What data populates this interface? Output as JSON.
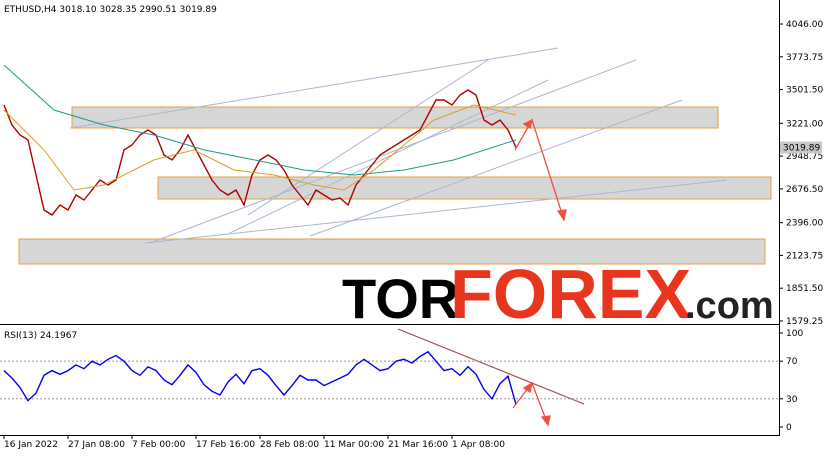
{
  "chart_data": [
    {
      "type": "line",
      "title": "ETHUSD,H4  3018.10 3028.35 2990.51 3019.89",
      "xlim": [
        -4,
        774
      ],
      "ylim": [
        1554,
        4229
      ],
      "yticks": [
        {
          "value": 4046,
          "label": "4046.00"
        },
        {
          "value": 3773.75,
          "label": "3773.75"
        },
        {
          "value": 3501.5,
          "label": "3501.50"
        },
        {
          "value": 3221,
          "label": "3221.00"
        },
        {
          "value": 2948.75,
          "label": "2948.75"
        },
        {
          "value": 2676.5,
          "label": "2676.50"
        },
        {
          "value": 2396,
          "label": "2396.00"
        },
        {
          "value": 2123.75,
          "label": "2123.75"
        },
        {
          "value": 1851.5,
          "label": "1851.50"
        },
        {
          "value": 1579.25,
          "label": "1579.25"
        }
      ],
      "last_price": {
        "value": 3019.89,
        "label": "3019.89"
      },
      "series": [
        {
          "color": "#b00000",
          "x": [
            0,
            8,
            16,
            24,
            32,
            40,
            48,
            56,
            64,
            72,
            80,
            88,
            96,
            104,
            112,
            120,
            128,
            136,
            144,
            152,
            160,
            168,
            176,
            184,
            192,
            200,
            208,
            216,
            224,
            232,
            240,
            248,
            256,
            264,
            272,
            280,
            288,
            296,
            304,
            312,
            320,
            328,
            336,
            344,
            352,
            360,
            368,
            376,
            384,
            392,
            400,
            408,
            416,
            424,
            432,
            440,
            448,
            456,
            464,
            472,
            480,
            488,
            496,
            504,
            512
          ],
          "values": [
            3373,
            3207,
            3124,
            3083,
            2792,
            2501,
            2460,
            2543,
            2501,
            2626,
            2584,
            2667,
            2750,
            2709,
            2750,
            3000,
            3041,
            3124,
            3166,
            3124,
            2958,
            2917,
            3000,
            3124,
            3000,
            2875,
            2750,
            2667,
            2626,
            2667,
            2543,
            2792,
            2917,
            2958,
            2917,
            2833,
            2709,
            2626,
            2543,
            2667,
            2626,
            2584,
            2601,
            2543,
            2709,
            2792,
            2875,
            2958,
            3000,
            3041,
            3083,
            3124,
            3166,
            3290,
            3415,
            3415,
            3373,
            3456,
            3498,
            3456,
            3249,
            3207,
            3249,
            3166,
            3020
          ]
        },
        {
          "color": "#1a9a8a",
          "x": [
            0,
            50,
            100,
            150,
            200,
            250,
            300,
            350,
            400,
            450,
            512
          ],
          "values": [
            3706,
            3332,
            3207,
            3124,
            3000,
            2917,
            2833,
            2792,
            2833,
            2917,
            3083
          ]
        },
        {
          "color": "#d4a020",
          "x": [
            0,
            40,
            70,
            100,
            150,
            190,
            230,
            270,
            310,
            340,
            370,
            400,
            430,
            470,
            512
          ],
          "values": [
            3332,
            3000,
            2667,
            2709,
            2917,
            3000,
            2833,
            2792,
            2709,
            2667,
            2833,
            3041,
            3249,
            3373,
            3290
          ]
        }
      ]
    },
    {
      "type": "line",
      "title": "RSI(13) 24.1967",
      "xlim": [
        -4,
        774
      ],
      "ylim": [
        -8.5,
        107.4
      ],
      "yticks": [
        100,
        70,
        30,
        0
      ],
      "dotted_levels": [
        70,
        30
      ],
      "xticks": [
        {
          "value": 0,
          "label": "16 Jan 2022"
        },
        {
          "value": 64,
          "label": "27 Jan 08:00"
        },
        {
          "value": 128,
          "label": "7 Feb 00:00"
        },
        {
          "value": 192,
          "label": "17 Feb 16:00"
        },
        {
          "value": 256,
          "label": "28 Feb 08:00"
        },
        {
          "value": 320,
          "label": "11 Mar 00:00"
        },
        {
          "value": 384,
          "label": "21 Mar 16:00"
        },
        {
          "value": 448,
          "label": "1 Apr 08:00"
        }
      ],
      "series": [
        {
          "color": "#0000ee",
          "x": [
            0,
            8,
            16,
            24,
            32,
            40,
            48,
            56,
            64,
            72,
            80,
            88,
            96,
            104,
            112,
            120,
            128,
            136,
            144,
            152,
            160,
            168,
            176,
            184,
            192,
            200,
            208,
            216,
            224,
            232,
            240,
            248,
            256,
            264,
            272,
            280,
            288,
            296,
            304,
            312,
            320,
            328,
            336,
            344,
            352,
            360,
            368,
            376,
            384,
            392,
            400,
            408,
            416,
            424,
            432,
            440,
            448,
            456,
            464,
            472,
            480,
            488,
            496,
            504,
            512
          ],
          "values": [
            60,
            52,
            42,
            28,
            36,
            55,
            60,
            56,
            60,
            66,
            62,
            70,
            66,
            72,
            76,
            70,
            60,
            55,
            64,
            60,
            50,
            45,
            55,
            66,
            58,
            45,
            38,
            34,
            48,
            56,
            46,
            60,
            62,
            55,
            44,
            34,
            44,
            55,
            50,
            50,
            44,
            48,
            52,
            56,
            66,
            72,
            66,
            60,
            62,
            70,
            72,
            68,
            75,
            80,
            70,
            60,
            62,
            55,
            64,
            56,
            40,
            30,
            46,
            54,
            24
          ]
        }
      ]
    }
  ],
  "watermark": {
    "part1": "TOR",
    "part2": "FOREX",
    "part3": ".com"
  }
}
